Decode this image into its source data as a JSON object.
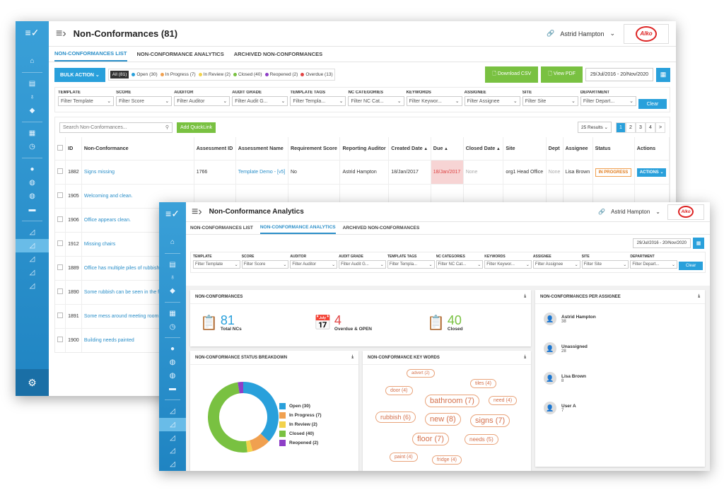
{
  "brand_color": "#29a0db",
  "green": "#79c141",
  "list_window": {
    "title": "Non-Conformances (81)",
    "user": "Astrid Hampton",
    "org_logo_text": "Alko",
    "tabs": [
      "NON-CONFORMANCES LIST",
      "NON-CONFORMANCE ANALYTICS",
      "ARCHIVED NON-CONFORMANCES"
    ],
    "filters": [
      {
        "label": "TEMPLATE",
        "value": "Filter Template"
      },
      {
        "label": "SCORE",
        "value": "Filter Score"
      },
      {
        "label": "AUDITOR",
        "value": "Filter Auditor"
      },
      {
        "label": "AUDIT GRADE",
        "value": "Filter Audit G..."
      },
      {
        "label": "TEMPLATE TAGS",
        "value": "Filter Templa..."
      },
      {
        "label": "NC CATEGORIES",
        "value": "Filter NC Cat..."
      },
      {
        "label": "KEYWORDS",
        "value": "Filter Keywor..."
      },
      {
        "label": "ASSIGNEE",
        "value": "Filter Assignee"
      },
      {
        "label": "SITE",
        "value": "Filter Site"
      },
      {
        "label": "DEPARTMENT",
        "value": "Filter Depart..."
      }
    ],
    "clear_label": "Clear",
    "bulk_action": "BULK ACTION",
    "chips": [
      {
        "label": "All (81)",
        "color": ""
      },
      {
        "label": "Open (30)",
        "color": "#29a0db"
      },
      {
        "label": "In Progress (7)",
        "color": "#f0a050"
      },
      {
        "label": "In Review (2)",
        "color": "#f2d24b"
      },
      {
        "label": "Closed (40)",
        "color": "#79c141"
      },
      {
        "label": "Reopened (2)",
        "color": "#8e3fc7"
      },
      {
        "label": "Overdue (13)",
        "color": "#e04444"
      }
    ],
    "download_csv": "Download CSV",
    "view_pdf": "View PDF",
    "date_range": "29/Jul/2016 - 20/Nov/2020",
    "search_placeholder": "Search Non-Conformances...",
    "add_quicklink": "Add QuickLink",
    "results_select": "25 Results",
    "pages": [
      "1",
      "2",
      "3",
      "4",
      ">"
    ],
    "columns": [
      "ID",
      "Non-Conformance",
      "Assessment ID",
      "Assessment Name",
      "Requirement Score",
      "Reporting Auditor",
      "Created Date",
      "Due",
      "Closed Date",
      "Site",
      "Dept",
      "Assignee",
      "Status",
      "Actions"
    ],
    "rows": [
      {
        "id": "1882",
        "nc": "Signs missing",
        "aid": "1766",
        "aname": "Template Demo - [v5]",
        "score": "No",
        "auditor": "Astrid Hampton",
        "created": "18/Jan/2017",
        "due": "18/Jan/2017",
        "closed": "None",
        "site": "org1 Head Office",
        "dept": "None",
        "assignee": "Lisa Brown",
        "status": "IN PROGRESS",
        "action": "ACTIONS"
      },
      {
        "id": "1905",
        "nc": "Welcoming and clean."
      },
      {
        "id": "1906",
        "nc": "Office appears clean."
      },
      {
        "id": "1912",
        "nc": "Missing chairs"
      },
      {
        "id": "1889",
        "nc": "Office has multiple piles of rubbish laying around"
      },
      {
        "id": "1890",
        "nc": "Some rubbish can be seen in the floor"
      },
      {
        "id": "1891",
        "nc": "Some mess around meeting room"
      },
      {
        "id": "1900",
        "nc": "Building needs painted"
      }
    ]
  },
  "analytics_window": {
    "title": "Non-Conformance Analytics",
    "user": "Astrid Hampton",
    "org_logo_text": "Alko",
    "tabs": [
      "NON-CONFORMANCES LIST",
      "NON-CONFORMANCE ANALYTICS",
      "ARCHIVED NON-CONFORMANCES"
    ],
    "date_range": "29/Jul/2016 - 20/Nov/2020",
    "filters": [
      {
        "label": "TEMPLATE",
        "value": "Filter Template"
      },
      {
        "label": "SCORE",
        "value": "Filter Score"
      },
      {
        "label": "AUDITOR",
        "value": "Filter Auditor"
      },
      {
        "label": "AUDIT GRADE",
        "value": "Filter Audit G..."
      },
      {
        "label": "TEMPLATE TAGS",
        "value": "Filter Templa..."
      },
      {
        "label": "NC CATEGORIES",
        "value": "Filter NC Cat..."
      },
      {
        "label": "KEYWORDS",
        "value": "Filter Keywor..."
      },
      {
        "label": "ASSIGNEE",
        "value": "Filter Assignee"
      },
      {
        "label": "SITE",
        "value": "Filter Site"
      },
      {
        "label": "DEPARTMENT",
        "value": "Filter Depart..."
      }
    ],
    "clear_label": "Clear",
    "nc_card": {
      "title": "NON-CONFORMANCES",
      "total": {
        "value": "81",
        "label": "Total NCs",
        "color": "#29a0db"
      },
      "overdue": {
        "value": "4",
        "label": "Overdue & OPEN",
        "color": "#e04444"
      },
      "closed": {
        "value": "40",
        "label": "Closed",
        "color": "#79c141"
      }
    },
    "assignee_card": {
      "title": "NON-CONFORMANCES PER ASSIGNEE",
      "items": [
        {
          "name": "Astrid Hampton",
          "count": "38"
        },
        {
          "name": "Unassigned",
          "count": "28"
        },
        {
          "name": "Lisa Brown",
          "count": "8"
        },
        {
          "name": "User A",
          "count": "7"
        }
      ]
    },
    "status_card": {
      "title": "NON-CONFORMANCE STATUS BREAKDOWN"
    },
    "keywords_card": {
      "title": "NON-CONFORMANCE KEY WORDS",
      "words": [
        {
          "text": "advert (2)",
          "size": 6
        },
        {
          "text": "tiles (4)",
          "size": 7
        },
        {
          "text": "door (4)",
          "size": 7
        },
        {
          "text": "bathroom (7)",
          "size": 11
        },
        {
          "text": "need (4)",
          "size": 7
        },
        {
          "text": "rubbish (6)",
          "size": 9
        },
        {
          "text": "new (8)",
          "size": 11
        },
        {
          "text": "signs (7)",
          "size": 11
        },
        {
          "text": "floor (7)",
          "size": 11
        },
        {
          "text": "needs (5)",
          "size": 8
        },
        {
          "text": "paint (4)",
          "size": 7
        },
        {
          "text": "fridge (4)",
          "size": 7
        }
      ]
    }
  },
  "chart_data": {
    "type": "pie",
    "labels": [
      "Open (30)",
      "In Progress (7)",
      "In Review (2)",
      "Closed (40)",
      "Reopened (2)"
    ],
    "values": [
      30,
      7,
      2,
      40,
      2
    ],
    "colors": [
      "#29a0db",
      "#f0a050",
      "#f2d24b",
      "#79c141",
      "#8e3fc7"
    ],
    "donut": true,
    "legend": "right"
  }
}
